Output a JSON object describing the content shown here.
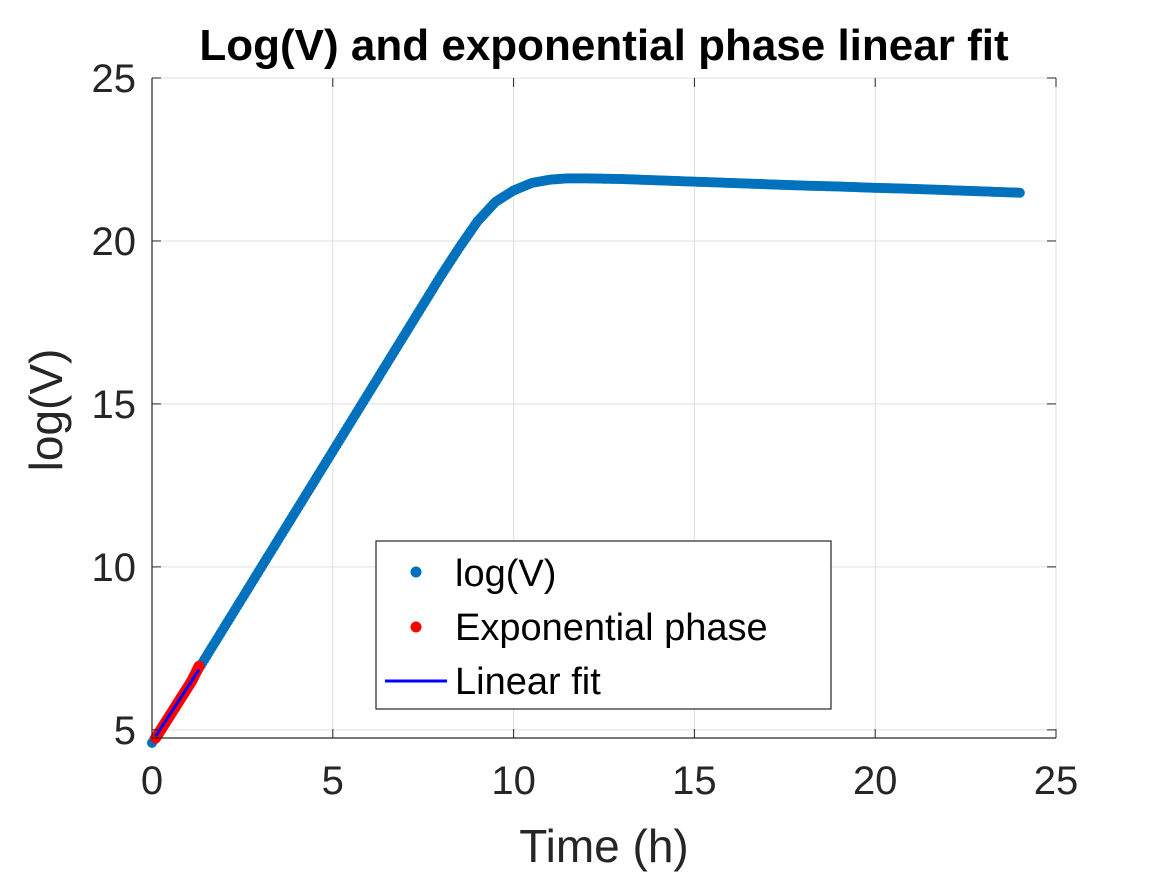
{
  "chart_data": {
    "type": "scatter",
    "title": "Log(V) and exponential phase linear fit",
    "xlabel": "Time (h)",
    "ylabel": "log(V)",
    "xlim": [
      0,
      25
    ],
    "ylim": [
      4.75,
      25
    ],
    "xticks": [
      "0",
      "5",
      "10",
      "15",
      "20",
      "25"
    ],
    "yticks": [
      "5",
      "10",
      "15",
      "20",
      "25"
    ],
    "grid": true,
    "legend_position": "bottom-center",
    "series": [
      {
        "name": "log(V)",
        "type": "scatter",
        "color": "#0072BD",
        "marker": "filled-circle",
        "x": [
          0,
          0.5,
          1,
          1.5,
          2,
          2.5,
          3,
          3.5,
          4,
          4.5,
          5,
          5.5,
          6,
          6.5,
          7,
          7.5,
          8,
          8.5,
          9,
          9.5,
          10,
          10.5,
          11,
          11.5,
          12,
          13,
          14,
          15,
          16,
          17,
          18,
          19,
          20,
          21,
          22,
          23,
          24
        ],
        "y": [
          4.6,
          5.45,
          6.35,
          7.25,
          8.15,
          9.05,
          9.95,
          10.85,
          11.75,
          12.65,
          13.55,
          14.45,
          15.35,
          16.25,
          17.15,
          18.05,
          18.95,
          19.8,
          20.6,
          21.2,
          21.55,
          21.78,
          21.88,
          21.92,
          21.92,
          21.9,
          21.86,
          21.82,
          21.78,
          21.74,
          21.7,
          21.67,
          21.63,
          21.6,
          21.56,
          21.52,
          21.48
        ]
      },
      {
        "name": "Exponential phase",
        "type": "scatter",
        "color": "#FF0000",
        "marker": "filled-circle",
        "x": [
          0.1,
          0.3,
          0.5,
          0.7,
          0.9,
          1.1,
          1.3
        ],
        "y": [
          4.75,
          5.1,
          5.45,
          5.8,
          6.15,
          6.5,
          6.95
        ]
      },
      {
        "name": "Linear fit",
        "type": "line",
        "color": "#0000FF",
        "x": [
          0.1,
          1.3
        ],
        "y": [
          4.8,
          6.85
        ]
      }
    ]
  }
}
